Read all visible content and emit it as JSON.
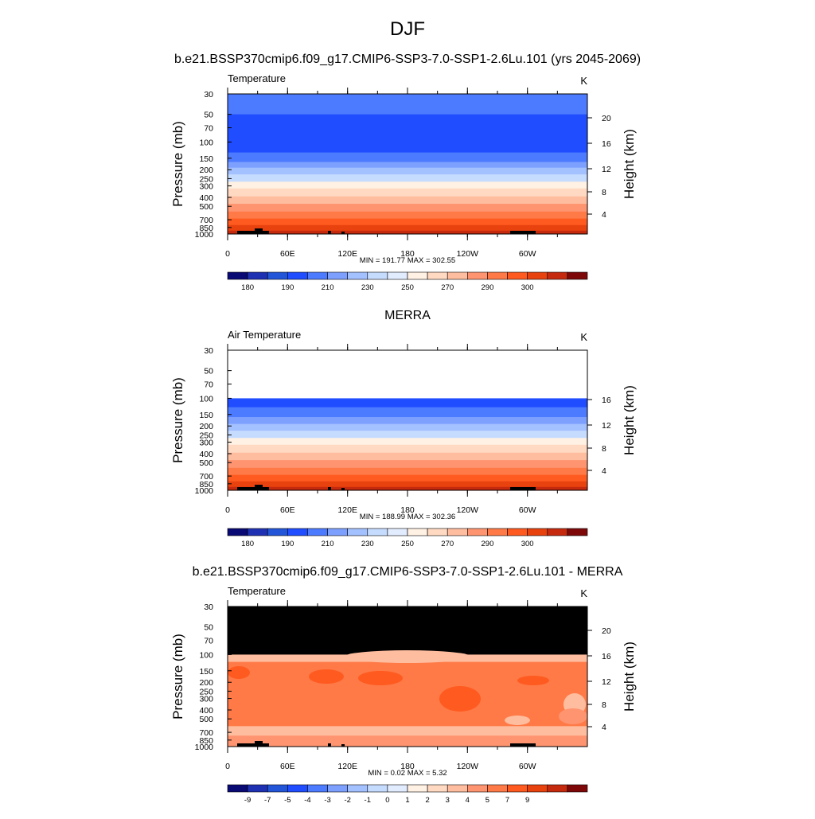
{
  "title": "DJF",
  "x_ticks": [
    "0",
    "60E",
    "120E",
    "180",
    "120W",
    "60W"
  ],
  "colors": {
    "temperature": [
      "#0a0a75",
      "#1f31b3",
      "#2255d8",
      "#1f4dff",
      "#4d7bff",
      "#7da0ff",
      "#a3c0ff",
      "#c6dcff",
      "#e2ecff",
      "#fff1e3",
      "#ffd9c2",
      "#ffbd9f",
      "#ff9470",
      "#ff7a47",
      "#ff5a1f",
      "#e8420f",
      "#c62a0e",
      "#7e0808"
    ],
    "difference": [
      "#0a0a75",
      "#1f31b3",
      "#2255d8",
      "#1f4dff",
      "#4d7bff",
      "#7da0ff",
      "#a3c0ff",
      "#c6dcff",
      "#e2ecff",
      "#fff1e3",
      "#ffd9c2",
      "#ffbd9f",
      "#ff9470",
      "#ff7a47",
      "#ff5a1f",
      "#e8420f",
      "#c62a0e",
      "#7e0808"
    ]
  },
  "chart_data": [
    {
      "type": "heatmap",
      "header": "b.e21.BSSP370cmip6.f09_g17.CMIP6-SSP3-7.0-SSP1-2.6Lu.101 (yrs 2045-2069)",
      "variable": "Temperature",
      "units": "K",
      "ylabel": "Pressure (mb)",
      "y2label": "Height (km)",
      "y_ticks": [
        30,
        50,
        70,
        100,
        150,
        200,
        250,
        300,
        400,
        500,
        700,
        850,
        1000
      ],
      "y2_ticks": [
        20,
        16,
        12,
        8,
        4
      ],
      "ylim": [
        30,
        1000
      ],
      "y_scale": "log",
      "x_ticks": [
        "0",
        "60E",
        "120E",
        "180",
        "120W",
        "60W"
      ],
      "stats": "MIN = 191.77  MAX = 302.55",
      "min": 191.77,
      "max": 302.55,
      "colorbar_labels": [
        "180",
        "190",
        "210",
        "230",
        "250",
        "270",
        "290",
        "300"
      ],
      "levels": [
        {
          "p_top": 30,
          "p_bottom": 50,
          "color": "#4d7bff"
        },
        {
          "p_top": 50,
          "p_bottom": 130,
          "color": "#1f4dff"
        },
        {
          "p_top": 130,
          "p_bottom": 165,
          "color": "#4d7bff"
        },
        {
          "p_top": 165,
          "p_bottom": 190,
          "color": "#7da0ff"
        },
        {
          "p_top": 190,
          "p_bottom": 225,
          "color": "#a3c0ff"
        },
        {
          "p_top": 225,
          "p_bottom": 270,
          "color": "#c6dcff"
        },
        {
          "p_top": 270,
          "p_bottom": 320,
          "color": "#fff1e3"
        },
        {
          "p_top": 320,
          "p_bottom": 390,
          "color": "#ffd9c2"
        },
        {
          "p_top": 390,
          "p_bottom": 470,
          "color": "#ffbd9f"
        },
        {
          "p_top": 470,
          "p_bottom": 570,
          "color": "#ff9470"
        },
        {
          "p_top": 570,
          "p_bottom": 680,
          "color": "#ff7a47"
        },
        {
          "p_top": 680,
          "p_bottom": 800,
          "color": "#ff5a1f"
        },
        {
          "p_top": 800,
          "p_bottom": 920,
          "color": "#e8420f"
        },
        {
          "p_top": 920,
          "p_bottom": 1000,
          "color": "#c62a0e"
        }
      ],
      "topography": true
    },
    {
      "type": "heatmap",
      "header": "MERRA",
      "variable": "Air Temperature",
      "units": "K",
      "ylabel": "Pressure (mb)",
      "y2label": "Height (km)",
      "y_ticks": [
        30,
        50,
        70,
        100,
        150,
        200,
        250,
        300,
        400,
        500,
        700,
        850,
        1000
      ],
      "y2_ticks": [
        16,
        12,
        8,
        4
      ],
      "ylim": [
        30,
        1000
      ],
      "y_scale": "log",
      "x_ticks": [
        "0",
        "60E",
        "120E",
        "180",
        "120W",
        "60W"
      ],
      "stats": "MIN = 188.99  MAX = 302.36",
      "min": 188.99,
      "max": 302.36,
      "colorbar_labels": [
        "180",
        "190",
        "210",
        "230",
        "250",
        "270",
        "290",
        "300"
      ],
      "levels": [
        {
          "p_top": 30,
          "p_bottom": 100,
          "color": "#ffffff"
        },
        {
          "p_top": 100,
          "p_bottom": 125,
          "color": "#1f4dff"
        },
        {
          "p_top": 125,
          "p_bottom": 160,
          "color": "#4d7bff"
        },
        {
          "p_top": 160,
          "p_bottom": 190,
          "color": "#7da0ff"
        },
        {
          "p_top": 190,
          "p_bottom": 225,
          "color": "#a3c0ff"
        },
        {
          "p_top": 225,
          "p_bottom": 270,
          "color": "#c6dcff"
        },
        {
          "p_top": 270,
          "p_bottom": 320,
          "color": "#fff1e3"
        },
        {
          "p_top": 320,
          "p_bottom": 390,
          "color": "#ffd9c2"
        },
        {
          "p_top": 390,
          "p_bottom": 470,
          "color": "#ffbd9f"
        },
        {
          "p_top": 470,
          "p_bottom": 570,
          "color": "#ff9470"
        },
        {
          "p_top": 570,
          "p_bottom": 680,
          "color": "#ff7a47"
        },
        {
          "p_top": 680,
          "p_bottom": 800,
          "color": "#ff5a1f"
        },
        {
          "p_top": 800,
          "p_bottom": 920,
          "color": "#e8420f"
        },
        {
          "p_top": 920,
          "p_bottom": 1000,
          "color": "#c62a0e"
        }
      ],
      "topography": true
    },
    {
      "type": "heatmap",
      "header": "b.e21.BSSP370cmip6.f09_g17.CMIP6-SSP3-7.0-SSP1-2.6Lu.101 - MERRA",
      "variable": "Temperature",
      "units": "K",
      "ylabel": "Pressure (mb)",
      "y2label": "Height (km)",
      "y_ticks": [
        30,
        50,
        70,
        100,
        150,
        200,
        250,
        300,
        400,
        500,
        700,
        850,
        1000
      ],
      "y2_ticks": [
        20,
        16,
        12,
        8,
        4
      ],
      "ylim": [
        30,
        1000
      ],
      "y_scale": "log",
      "x_ticks": [
        "0",
        "60E",
        "120E",
        "180",
        "120W",
        "60W"
      ],
      "stats": "MIN =   0.02  MAX =   5.32",
      "min": 0.02,
      "max": 5.32,
      "colorbar_labels": [
        "-9",
        "-7",
        "-5",
        "-4",
        "-3",
        "-2",
        "-1",
        "0",
        "1",
        "2",
        "3",
        "4",
        "5",
        "7",
        "9"
      ],
      "levels": [
        {
          "p_top": 30,
          "p_bottom": 100,
          "color": "#000000"
        },
        {
          "p_top": 100,
          "p_bottom": 120,
          "color": "#ffbd9f"
        },
        {
          "p_top": 120,
          "p_bottom": 600,
          "color": "#ff7a47"
        },
        {
          "p_top": 600,
          "p_bottom": 760,
          "color": "#ffbd9f"
        },
        {
          "p_top": 760,
          "p_bottom": 1000,
          "color": "#ff9470"
        }
      ],
      "topography": true
    }
  ]
}
